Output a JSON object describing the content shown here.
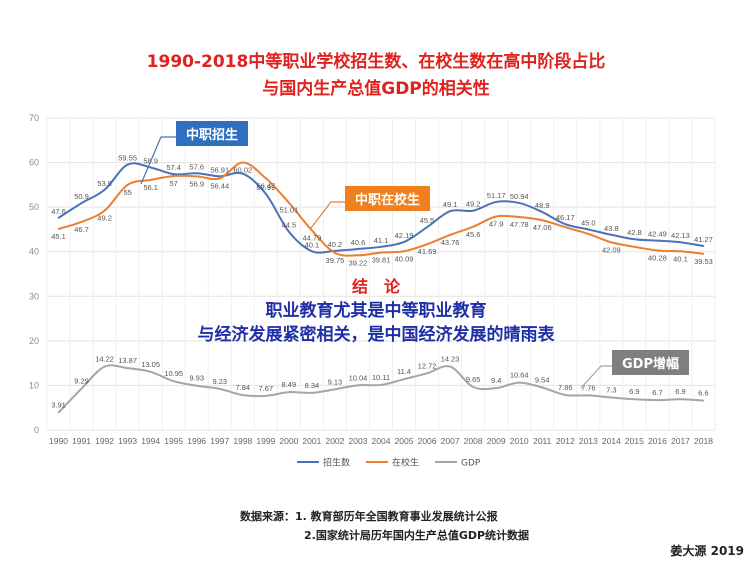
{
  "title_line1": "1990-2018中等职业学校招生数、在校生数在高中阶段占比",
  "title_line2": "与国内生产总值GDP的相关性",
  "callouts": {
    "enroll": "中职招生",
    "students": "中职在校生",
    "gdp": "GDP增幅"
  },
  "conclusion": {
    "heading": "结　论",
    "line1": "职业教育尤其是中等职业教育",
    "line2": "与经济发展紧密相关，是中国经济发展的晴雨表"
  },
  "source": {
    "line1": "数据来源：1. 教育部历年全国教育事业发展统计公报",
    "line2": "2.国家统计局历年国内生产总值GDP统计数据"
  },
  "signature": "姜大源 2019",
  "colors": {
    "title": "#e0211d",
    "enroll": "#4a72b8",
    "students": "#ed7d31",
    "gdp": "#a5a5a5",
    "callout_blue": "#2f6fbd",
    "callout_orange": "#f07f1e",
    "callout_gray": "#7f7f7f",
    "conclusion_red": "#e0211d",
    "conclusion_blue": "#1f2fa8"
  },
  "chart_data": {
    "type": "line",
    "x": [
      "1990",
      "1991",
      "1992",
      "1993",
      "1994",
      "1995",
      "1996",
      "1997",
      "1998",
      "1999",
      "2000",
      "2001",
      "2002",
      "2003",
      "2004",
      "2005",
      "2006",
      "2007",
      "2008",
      "2009",
      "2010",
      "2011",
      "2012",
      "2013",
      "2014",
      "2015",
      "2016",
      "2017",
      "2018"
    ],
    "ylim": [
      0,
      70
    ],
    "yticks": [
      0,
      10,
      20,
      30,
      40,
      50,
      60,
      70
    ],
    "grid": true,
    "legend_position": "bottom",
    "series": [
      {
        "name": "招生数",
        "values": [
          47.6,
          50.9,
          53.9,
          59.55,
          58.9,
          57.4,
          57.6,
          56.91,
          57.5,
          52.99,
          44.5,
          40.1,
          40.2,
          40.6,
          41.1,
          42.19,
          45.5,
          49.1,
          49.2,
          51.17,
          50.94,
          48.9,
          46.17,
          45.0,
          43.8,
          42.8,
          42.49,
          42.13,
          41.27
        ],
        "labels": [
          "47.6",
          "50.9",
          "53.9",
          "59.55",
          "58.9",
          "57.4",
          "57.6",
          "56.91",
          "",
          "52.99",
          "44.5",
          "40.1",
          "40.2",
          "40.6",
          "41.1",
          "42.19",
          "45.5",
          "49.1",
          "49.2",
          "51.17",
          "50.94",
          "48.9",
          "46.17",
          "45.0",
          "43.8",
          "42.8",
          "42.49",
          "42.13",
          "41.27"
        ]
      },
      {
        "name": "在校生",
        "values": [
          45.1,
          46.7,
          49.2,
          55.0,
          56.1,
          57.0,
          56.9,
          56.44,
          60.02,
          56.47,
          51.01,
          44.79,
          39.75,
          39.2,
          39.8,
          40.1,
          41.69,
          43.76,
          45.6,
          47.9,
          47.78,
          47.06,
          45.5,
          44.0,
          42.09,
          41.1,
          40.28,
          40.1,
          39.53
        ],
        "labels": [
          "45.1",
          "46.7",
          "49.2",
          "55",
          "56.1",
          "57",
          "56.9",
          "56.44",
          "60.02",
          "56.47",
          "51.01",
          "44.79",
          "39.75",
          "39.22",
          "39.81",
          "40.09",
          "41.69",
          "43.76",
          "45.6",
          "47.9",
          "47.78",
          "47.06",
          "",
          "",
          "42.09",
          "",
          "40.28",
          "40.1",
          "39.53"
        ]
      },
      {
        "name": "GDP",
        "values": [
          3.91,
          9.29,
          14.22,
          13.87,
          13.05,
          10.95,
          9.93,
          9.23,
          7.84,
          7.67,
          8.49,
          8.34,
          9.13,
          10.04,
          10.11,
          11.4,
          12.72,
          14.23,
          9.65,
          9.4,
          10.64,
          9.54,
          7.86,
          7.76,
          7.3,
          6.9,
          6.7,
          6.9,
          6.6
        ],
        "labels": [
          "3.91",
          "9.29",
          "14.22",
          "13.87",
          "13.05",
          "10.95",
          "9.93",
          "9.23",
          "7.84",
          "7.67",
          "8.49",
          "8.34",
          "9.13",
          "10.04",
          "10.11",
          "11.4",
          "12.72",
          "14.23",
          "9.65",
          "9.4",
          "10.64",
          "9.54",
          "7.86",
          "7.76",
          "7.3",
          "6.9",
          "6.7",
          "6.9",
          "6.6"
        ]
      }
    ]
  }
}
